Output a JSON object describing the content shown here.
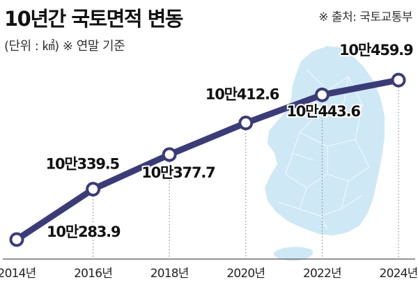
{
  "title": "10년간 국토면적 변동",
  "subtitle": "(단위 : ㎢) ※ 연말 기준",
  "source": "※ 출처: 국토교통부",
  "colors": {
    "line": "#3b3c77",
    "marker_fill": "#ffffff",
    "map": "#cfe8f6",
    "axis": "#555555"
  },
  "chart_data": {
    "type": "line",
    "title": "10년간 국토면적 변동",
    "ylabel": "",
    "xlabel": "",
    "grid": false,
    "ylim": [
      100283.9,
      100459.9
    ],
    "categories": [
      "2014년",
      "2016년",
      "2018년",
      "2020년",
      "2022년",
      "2024년"
    ],
    "series": [
      {
        "values": [
          100283.9,
          100339.5,
          100377.7,
          100412.6,
          100443.6,
          100459.9
        ],
        "labels": [
          "10만283.9",
          "10만339.5",
          "10만377.7",
          "10만412.6",
          "10만443.6",
          "10만459.9"
        ]
      }
    ]
  }
}
